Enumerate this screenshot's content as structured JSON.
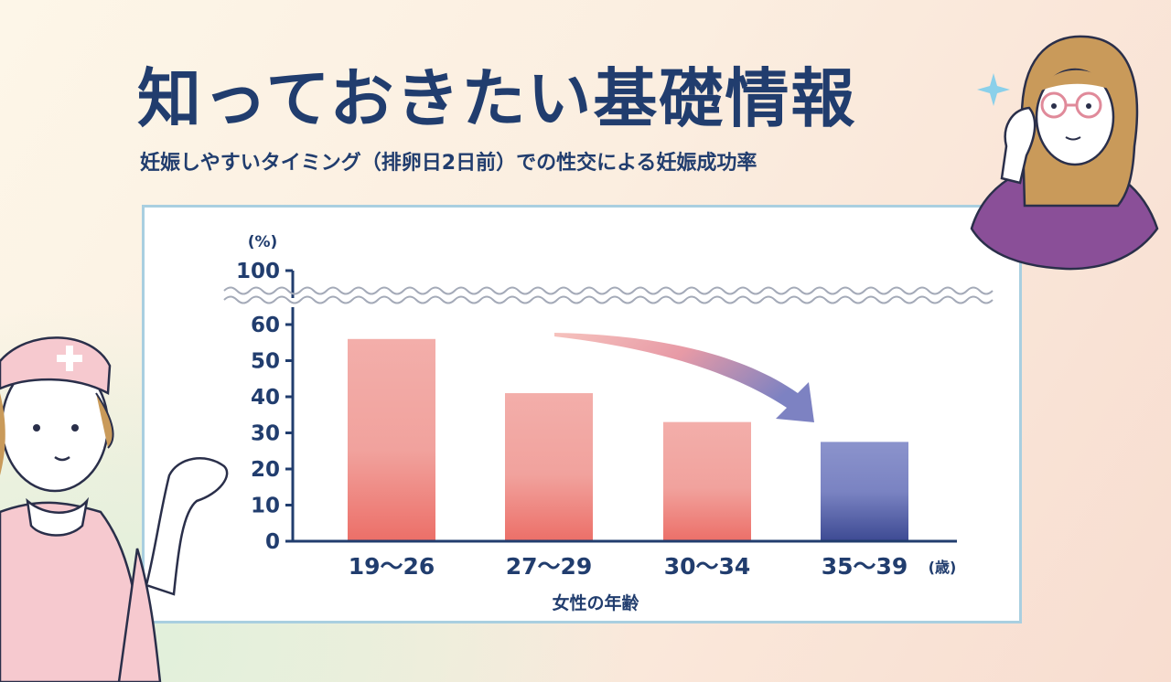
{
  "header": {
    "title": "知っておきたい基礎情報",
    "subtitle": "妊娠しやすいタイミング（排卵日2日前）での性交による妊娠成功率"
  },
  "chart_data": {
    "type": "bar",
    "ylabel": "(%)",
    "xlabel": "女性の年齢",
    "x_unit": "(歳)",
    "categories": [
      "19〜26",
      "27〜29",
      "30〜34",
      "35〜39"
    ],
    "values": [
      56,
      41,
      33,
      27.5
    ],
    "ylim": [
      0,
      100
    ],
    "yticks": [
      "100",
      "60",
      "50",
      "40",
      "30",
      "20",
      "10",
      "0"
    ],
    "axis_break": "60-100",
    "grid": false,
    "colors": {
      "bar_pink_top": "#f3aeaa",
      "bar_pink_bottom": "#ec6f68",
      "bar_blue_top": "#8b93cc",
      "bar_blue_bottom": "#3d4a93",
      "axis": "#213d6e",
      "arrow_start": "#f4b0ac",
      "arrow_end": "#8386c4"
    }
  }
}
